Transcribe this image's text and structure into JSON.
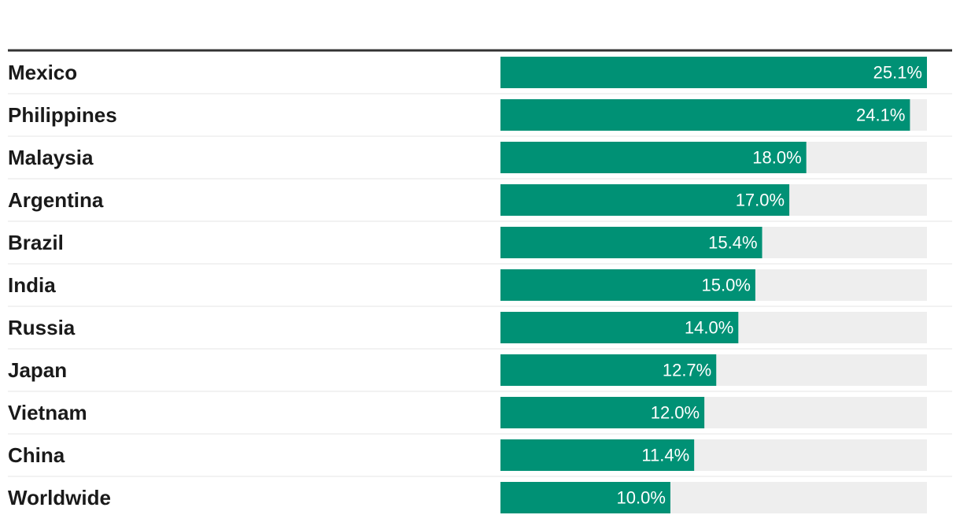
{
  "chart_data": {
    "type": "bar",
    "orientation": "horizontal",
    "categories": [
      "Mexico",
      "Philippines",
      "Malaysia",
      "Argentina",
      "Brazil",
      "India",
      "Russia",
      "Japan",
      "Vietnam",
      "China",
      "Worldwide"
    ],
    "values": [
      25.1,
      24.1,
      18.0,
      17.0,
      15.4,
      15.0,
      14.0,
      12.7,
      12.0,
      11.4,
      10.0
    ],
    "value_labels": [
      "25.1%",
      "24.1%",
      "18.0%",
      "17.0%",
      "15.4%",
      "15.0%",
      "14.0%",
      "12.7%",
      "12.0%",
      "11.4%",
      "10.0%"
    ],
    "xlim": [
      0,
      25.1
    ],
    "unit": "%",
    "grid": false,
    "legend": "none",
    "colors": {
      "bar": "#009175",
      "track": "#eeeeee",
      "value_text": "#ffffff",
      "label_text": "#1a1a1a",
      "top_rule": "#333333",
      "row_divider": "#e6e6e6"
    }
  }
}
